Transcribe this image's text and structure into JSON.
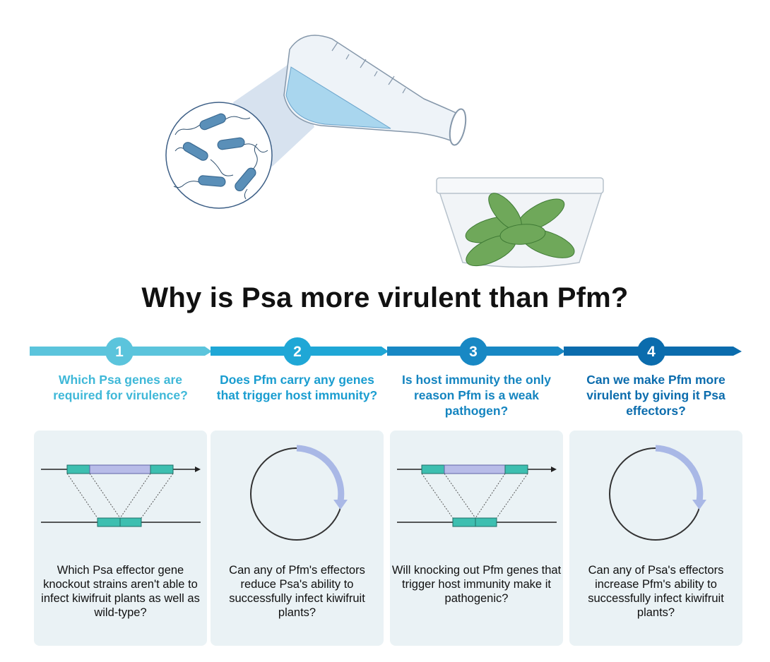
{
  "title": "Why is Psa more virulent than Pfm?",
  "steps": [
    {
      "number": "1",
      "color": "#5bc4dc",
      "question": "Which Psa genes are required for virulence?",
      "diagram": "gene-knockout",
      "caption": "Which Psa effector gene knockout strains aren't able to infect kiwifruit plants as well as wild-type?"
    },
    {
      "number": "2",
      "color": "#1fa7d6",
      "question": "Does Pfm carry any genes that trigger host immunity?",
      "diagram": "plasmid",
      "caption": "Can any of Pfm's effectors reduce Psa's ability to successfully infect kiwifruit plants?"
    },
    {
      "number": "3",
      "color": "#1888c4",
      "question": "Is host immunity the only reason Pfm is a weak pathogen?",
      "diagram": "gene-knockout",
      "caption": "Will knocking out Pfm genes that trigger host immunity make it pathogenic?"
    },
    {
      "number": "4",
      "color": "#0b6cad",
      "question": "Can we make Pfm more virulent by giving it Psa effectors?",
      "diagram": "plasmid",
      "caption": "Can any of Psa's effectors increase Pfm's ability to successfully infect kiwifruit plants?"
    }
  ],
  "colors": {
    "gene_flank": "#3dbfb0",
    "gene_target": "#b8bce8",
    "plasmid_arrow": "#a9b8e6",
    "card_bg": "#eaf2f5",
    "bacteria": "#5a8fb8",
    "leaf": "#6fa85a"
  }
}
